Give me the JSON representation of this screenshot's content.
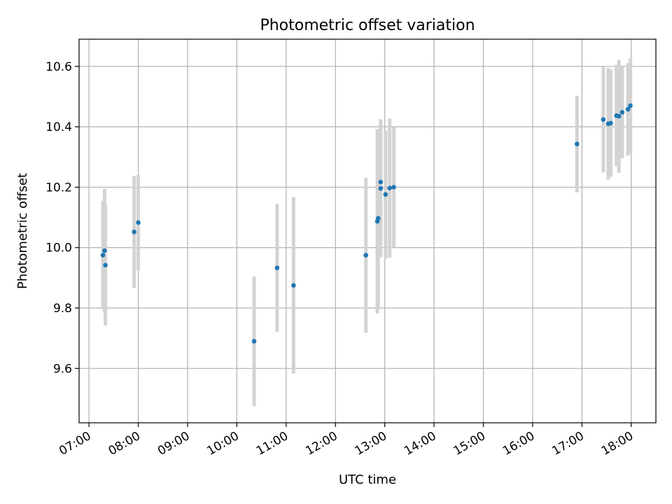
{
  "chart_data": {
    "type": "scatter",
    "title": "Photometric offset variation",
    "xlabel": "UTC time",
    "ylabel": "Photometric offset",
    "x_ticks": [
      "07:00",
      "08:00",
      "09:00",
      "10:00",
      "11:00",
      "12:00",
      "13:00",
      "14:00",
      "15:00",
      "16:00",
      "17:00",
      "18:00"
    ],
    "y_ticks": [
      "9.6",
      "9.8",
      "10.0",
      "10.2",
      "10.4",
      "10.6"
    ],
    "xlim": [
      "06:48",
      "18:30"
    ],
    "ylim": [
      9.42,
      10.69
    ],
    "grid": true,
    "point_color": "#1f77b4",
    "errorbar_color": "#d3d3d3",
    "points": [
      {
        "x": "07:17",
        "y": 9.975,
        "err": 0.18
      },
      {
        "x": "07:19",
        "y": 9.99,
        "err": 0.205
      },
      {
        "x": "07:20",
        "y": 9.942,
        "err": 0.2
      },
      {
        "x": "07:55",
        "y": 10.052,
        "err": 0.185
      },
      {
        "x": "08:00",
        "y": 10.083,
        "err": 0.158
      },
      {
        "x": "10:21",
        "y": 9.69,
        "err": 0.215
      },
      {
        "x": "10:49",
        "y": 9.933,
        "err": 0.212
      },
      {
        "x": "11:09",
        "y": 9.875,
        "err": 0.292
      },
      {
        "x": "12:37",
        "y": 9.975,
        "err": 0.257
      },
      {
        "x": "12:51",
        "y": 10.087,
        "err": 0.305
      },
      {
        "x": "12:52",
        "y": 10.097,
        "err": 0.295
      },
      {
        "x": "12:55",
        "y": 10.217,
        "err": 0.208
      },
      {
        "x": "12:55",
        "y": 10.196,
        "err": 0.228
      },
      {
        "x": "13:01",
        "y": 10.176,
        "err": 0.212
      },
      {
        "x": "13:06",
        "y": 10.197,
        "err": 0.23
      },
      {
        "x": "13:11",
        "y": 10.2,
        "err": 0.198
      },
      {
        "x": "16:54",
        "y": 10.343,
        "err": 0.16
      },
      {
        "x": "17:26",
        "y": 10.424,
        "err": 0.175
      },
      {
        "x": "17:32",
        "y": 10.41,
        "err": 0.185
      },
      {
        "x": "17:35",
        "y": 10.412,
        "err": 0.178
      },
      {
        "x": "17:42",
        "y": 10.437,
        "err": 0.168
      },
      {
        "x": "17:45",
        "y": 10.435,
        "err": 0.187
      },
      {
        "x": "17:49",
        "y": 10.448,
        "err": 0.152
      },
      {
        "x": "17:56",
        "y": 10.458,
        "err": 0.153
      },
      {
        "x": "17:59",
        "y": 10.47,
        "err": 0.158
      }
    ]
  }
}
